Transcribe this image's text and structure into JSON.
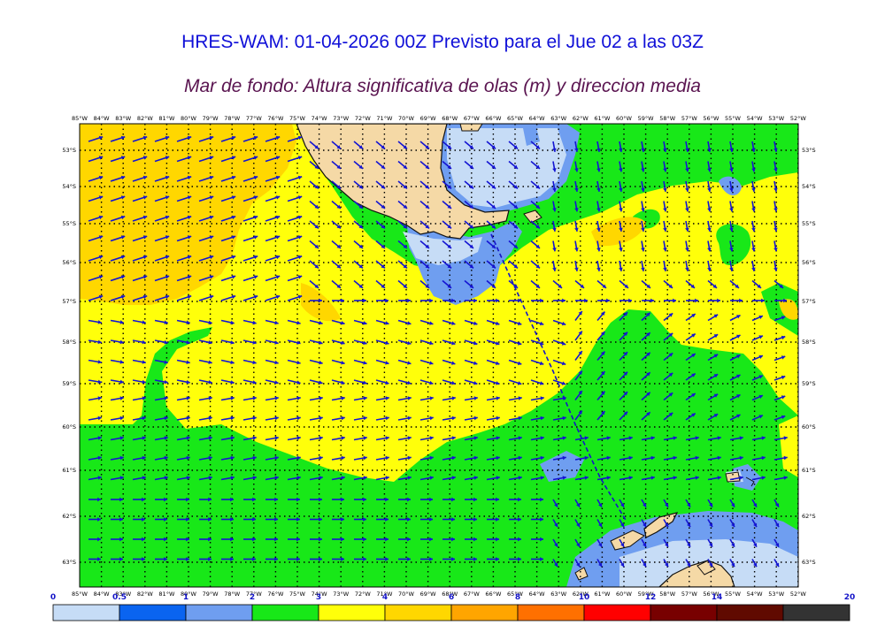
{
  "header": {
    "title": "HRES-WAM: 01-04-2026 00Z Previsto para el Jue 02 a las 03Z",
    "subtitle": "Mar de fondo: Altura significativa de olas (m) y direccion media"
  },
  "axes": {
    "lon_labels": [
      "85°W",
      "84°W",
      "83°W",
      "82°W",
      "81°W",
      "80°W",
      "79°W",
      "78°W",
      "77°W",
      "76°W",
      "75°W",
      "74°W",
      "73°W",
      "72°W",
      "71°W",
      "70°W",
      "69°W",
      "68°W",
      "67°W",
      "66°W",
      "65°W",
      "64°W",
      "63°W",
      "62°W",
      "61°W",
      "60°W",
      "59°W",
      "58°W",
      "57°W",
      "56°W",
      "55°W",
      "54°W",
      "53°W",
      "52°W"
    ],
    "lat_labels": [
      "53°S",
      "54°S",
      "55°S",
      "56°S",
      "57°S",
      "58°S",
      "59°S",
      "60°S",
      "61°S",
      "62°S",
      "63°S"
    ]
  },
  "colorbar": {
    "ticks": [
      "0",
      "0.5",
      "1",
      "2",
      "3",
      "4",
      "6",
      "8",
      "10",
      "12",
      "14",
      "20"
    ],
    "colors": [
      "#c6dcf6",
      "#0a64f0",
      "#6f9ef0",
      "#18e818",
      "#ffff0a",
      "#ffd700",
      "#ffa500",
      "#ff7000",
      "#ff0000",
      "#780000",
      "#600a00",
      "#333333"
    ]
  },
  "palette": {
    "land": "#f5d9a6",
    "coast": "#111111",
    "arrow": "#1414d2",
    "track": "#1414c8",
    "title_color": "#1010d8",
    "subtitle_color": "#5a1450"
  }
}
